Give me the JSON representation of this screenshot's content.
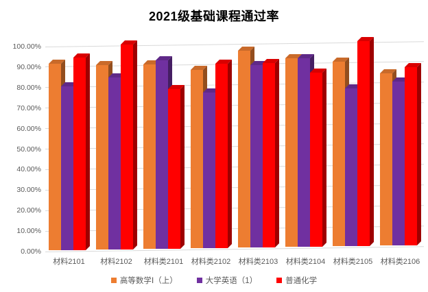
{
  "title": "2021级基础课程通过率",
  "chart_data": {
    "type": "bar",
    "subtype": "3d-clustered-column",
    "title": "2021级基础课程通过率",
    "categories": [
      "材料2101",
      "材料2102",
      "材料类2101",
      "材料类2102",
      "材料类2103",
      "材料类2104",
      "材料类2105",
      "材料类2106"
    ],
    "series": [
      {
        "name": "高等数学Ⅰ（上）",
        "color": "#ED7D31",
        "values": [
          91,
          90,
          90,
          87,
          96,
          92,
          90,
          84
        ]
      },
      {
        "name": "大学英语（1）",
        "color": "#7030A0",
        "values": [
          80,
          84,
          92,
          76,
          89,
          92,
          77,
          80
        ]
      },
      {
        "name": "普通化学",
        "color": "#FF0000",
        "values": [
          94,
          100,
          78,
          90,
          90,
          85,
          100,
          87
        ]
      }
    ],
    "xlabel": "",
    "ylabel": "",
    "ylim": [
      0,
      100
    ],
    "y_tick_step": 10,
    "y_tick_labels": [
      "0.00%",
      "10.00%",
      "20.00%",
      "30.00%",
      "40.00%",
      "50.00%",
      "60.00%",
      "70.00%",
      "80.00%",
      "90.00%",
      "100.00%"
    ],
    "value_format": "percent",
    "grid": true,
    "legend_position": "bottom"
  },
  "colors": {
    "background": "#FFFFFF",
    "title_text": "#000000",
    "axis_text": "#595959",
    "gridline": "#D9D9D9"
  }
}
